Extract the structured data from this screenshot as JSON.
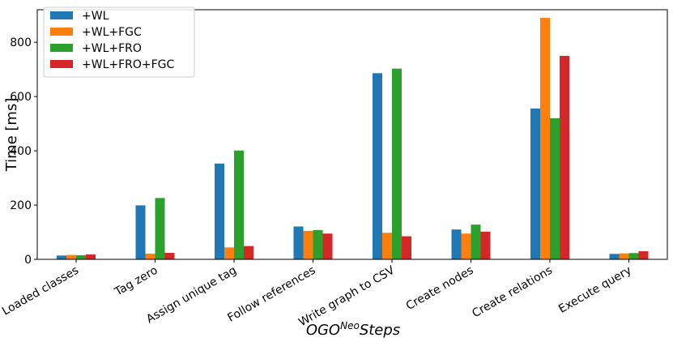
{
  "chart_data": {
    "type": "bar",
    "title": "",
    "xlabel_main": "OGO",
    "xlabel_sup": "Neo",
    "xlabel_rest": "Steps",
    "ylabel": "Time [ms]",
    "ylim": [
      0,
      920
    ],
    "yticks": [
      0,
      200,
      400,
      600,
      800
    ],
    "categories": [
      "Loaded classes",
      "Tag zero",
      "Assign unique tag",
      "Follow references",
      "Write graph to CSV",
      "Create nodes",
      "Create relations",
      "Execute query"
    ],
    "series": [
      {
        "name": "+WL",
        "color": "#1f77b4",
        "values": [
          14,
          199,
          353,
          121,
          686,
          110,
          556,
          20
        ]
      },
      {
        "name": "+WL+FGC",
        "color": "#ff7f0e",
        "values": [
          16,
          21,
          44,
          105,
          98,
          95,
          890,
          22
        ]
      },
      {
        "name": "+WL+FRO",
        "color": "#2ca02c",
        "values": [
          15,
          226,
          401,
          108,
          703,
          128,
          520,
          23
        ]
      },
      {
        "name": "+WL+FRO+FGC",
        "color": "#d62728",
        "values": [
          18,
          24,
          49,
          95,
          85,
          102,
          750,
          30
        ]
      }
    ],
    "legend_position": "top-left",
    "grid": false
  }
}
